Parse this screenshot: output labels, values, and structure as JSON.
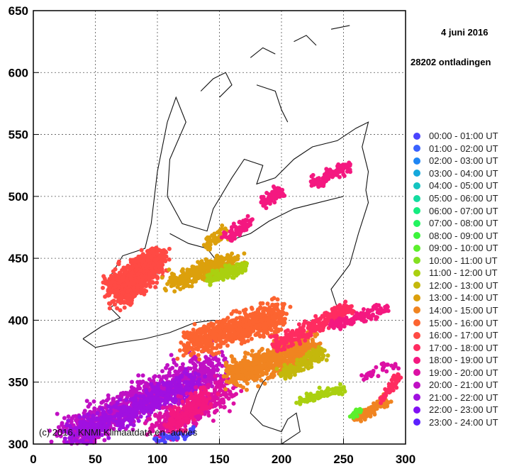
{
  "chart_data": {
    "type": "scatter",
    "title": "4 juni 2016",
    "subtitle": "28202 ontladingen",
    "copyright": "(c) 2016, KNMI Klimaatdata en -advies",
    "xlim": [
      0,
      300
    ],
    "ylim": [
      300,
      650
    ],
    "xticks": [
      "0",
      "50",
      "100",
      "150",
      "200",
      "250",
      "300"
    ],
    "yticks": [
      "300",
      "350",
      "400",
      "450",
      "500",
      "550",
      "600",
      "650"
    ],
    "grid": true,
    "legend_position": "right",
    "legend": [
      {
        "label": "00:00 - 01:00 UT",
        "color": "#4a44ff"
      },
      {
        "label": "01:00 - 02:00 UT",
        "color": "#3a62ff"
      },
      {
        "label": "02:00 - 03:00 UT",
        "color": "#1e86f4"
      },
      {
        "label": "03:00 - 04:00 UT",
        "color": "#14a8dc"
      },
      {
        "label": "04:00 - 05:00 UT",
        "color": "#14c4c0"
      },
      {
        "label": "05:00 - 06:00 UT",
        "color": "#14dca0"
      },
      {
        "label": "06:00 - 07:00 UT",
        "color": "#14ec80"
      },
      {
        "label": "07:00 - 08:00 UT",
        "color": "#22f460"
      },
      {
        "label": "08:00 - 09:00 UT",
        "color": "#3cf43c"
      },
      {
        "label": "09:00 - 10:00 UT",
        "color": "#5cf02c"
      },
      {
        "label": "10:00 - 11:00 UT",
        "color": "#84e020"
      },
      {
        "label": "11:00 - 12:00 UT",
        "color": "#aad010"
      },
      {
        "label": "12:00 - 13:00 UT",
        "color": "#c4b80c"
      },
      {
        "label": "13:00 - 14:00 UT",
        "color": "#dca00c"
      },
      {
        "label": "14:00 - 15:00 UT",
        "color": "#f08420"
      },
      {
        "label": "15:00 - 16:00 UT",
        "color": "#fc6430"
      },
      {
        "label": "16:00 - 17:00 UT",
        "color": "#ff4a44"
      },
      {
        "label": "17:00 - 18:00 UT",
        "color": "#ff2c60"
      },
      {
        "label": "18:00 - 19:00 UT",
        "color": "#f41880"
      },
      {
        "label": "19:00 - 20:00 UT",
        "color": "#dc10a4"
      },
      {
        "label": "20:00 - 21:00 UT",
        "color": "#c010c4"
      },
      {
        "label": "21:00 - 22:00 UT",
        "color": "#a010e0"
      },
      {
        "label": "22:00 - 23:00 UT",
        "color": "#8010f4"
      },
      {
        "label": "23:00 - 24:00 UT",
        "color": "#5c20ff"
      }
    ],
    "clusters": [
      {
        "hour": 20,
        "x": [
          25,
          150
        ],
        "y": [
          305,
          365
        ],
        "width": 12,
        "n": 900
      },
      {
        "hour": 21,
        "x": [
          30,
          130
        ],
        "y": [
          305,
          350
        ],
        "width": 9,
        "n": 500
      },
      {
        "hour": 19,
        "x": [
          100,
          160
        ],
        "y": [
          310,
          345
        ],
        "width": 10,
        "n": 350
      },
      {
        "hour": 18,
        "x": [
          110,
          140
        ],
        "y": [
          315,
          340
        ],
        "width": 8,
        "n": 200
      },
      {
        "hour": 16,
        "x": [
          70,
          100
        ],
        "y": [
          420,
          450
        ],
        "width": 10,
        "n": 700
      },
      {
        "hour": 16,
        "x": [
          60,
          95
        ],
        "y": [
          425,
          445
        ],
        "width": 8,
        "n": 300
      },
      {
        "hour": 13,
        "x": [
          110,
          165
        ],
        "y": [
          430,
          450
        ],
        "width": 6,
        "n": 300
      },
      {
        "hour": 11,
        "x": [
          140,
          170
        ],
        "y": [
          433,
          443
        ],
        "width": 4,
        "n": 150
      },
      {
        "hour": 13,
        "x": [
          140,
          155
        ],
        "y": [
          460,
          472
        ],
        "width": 4,
        "n": 60
      },
      {
        "hour": 18,
        "x": [
          155,
          175
        ],
        "y": [
          465,
          480
        ],
        "width": 4,
        "n": 80
      },
      {
        "hour": 18,
        "x": [
          185,
          200
        ],
        "y": [
          495,
          505
        ],
        "width": 4,
        "n": 80
      },
      {
        "hour": 18,
        "x": [
          225,
          255
        ],
        "y": [
          510,
          525
        ],
        "width": 4,
        "n": 120
      },
      {
        "hour": 15,
        "x": [
          125,
          200
        ],
        "y": [
          380,
          405
        ],
        "width": 10,
        "n": 700
      },
      {
        "hour": 14,
        "x": [
          160,
          225
        ],
        "y": [
          355,
          380
        ],
        "width": 10,
        "n": 700
      },
      {
        "hour": 12,
        "x": [
          200,
          235
        ],
        "y": [
          355,
          375
        ],
        "width": 5,
        "n": 150
      },
      {
        "hour": 17,
        "x": [
          195,
          255
        ],
        "y": [
          380,
          410
        ],
        "width": 5,
        "n": 300
      },
      {
        "hour": 18,
        "x": [
          240,
          285
        ],
        "y": [
          395,
          410
        ],
        "width": 4,
        "n": 120
      },
      {
        "hour": 11,
        "x": [
          215,
          250
        ],
        "y": [
          335,
          345
        ],
        "width": 3,
        "n": 100
      },
      {
        "hour": 14,
        "x": [
          260,
          285
        ],
        "y": [
          320,
          335
        ],
        "width": 4,
        "n": 100
      },
      {
        "hour": 17,
        "x": [
          280,
          295
        ],
        "y": [
          335,
          355
        ],
        "width": 3,
        "n": 60
      },
      {
        "hour": 19,
        "x": [
          265,
          295
        ],
        "y": [
          355,
          365
        ],
        "width": 3,
        "n": 30
      },
      {
        "hour": 0,
        "x": [
          95,
          130
        ],
        "y": [
          303,
          310
        ],
        "width": 3,
        "n": 40
      },
      {
        "hour": 9,
        "x": [
          255,
          265
        ],
        "y": [
          322,
          328
        ],
        "width": 2,
        "n": 20
      }
    ]
  }
}
